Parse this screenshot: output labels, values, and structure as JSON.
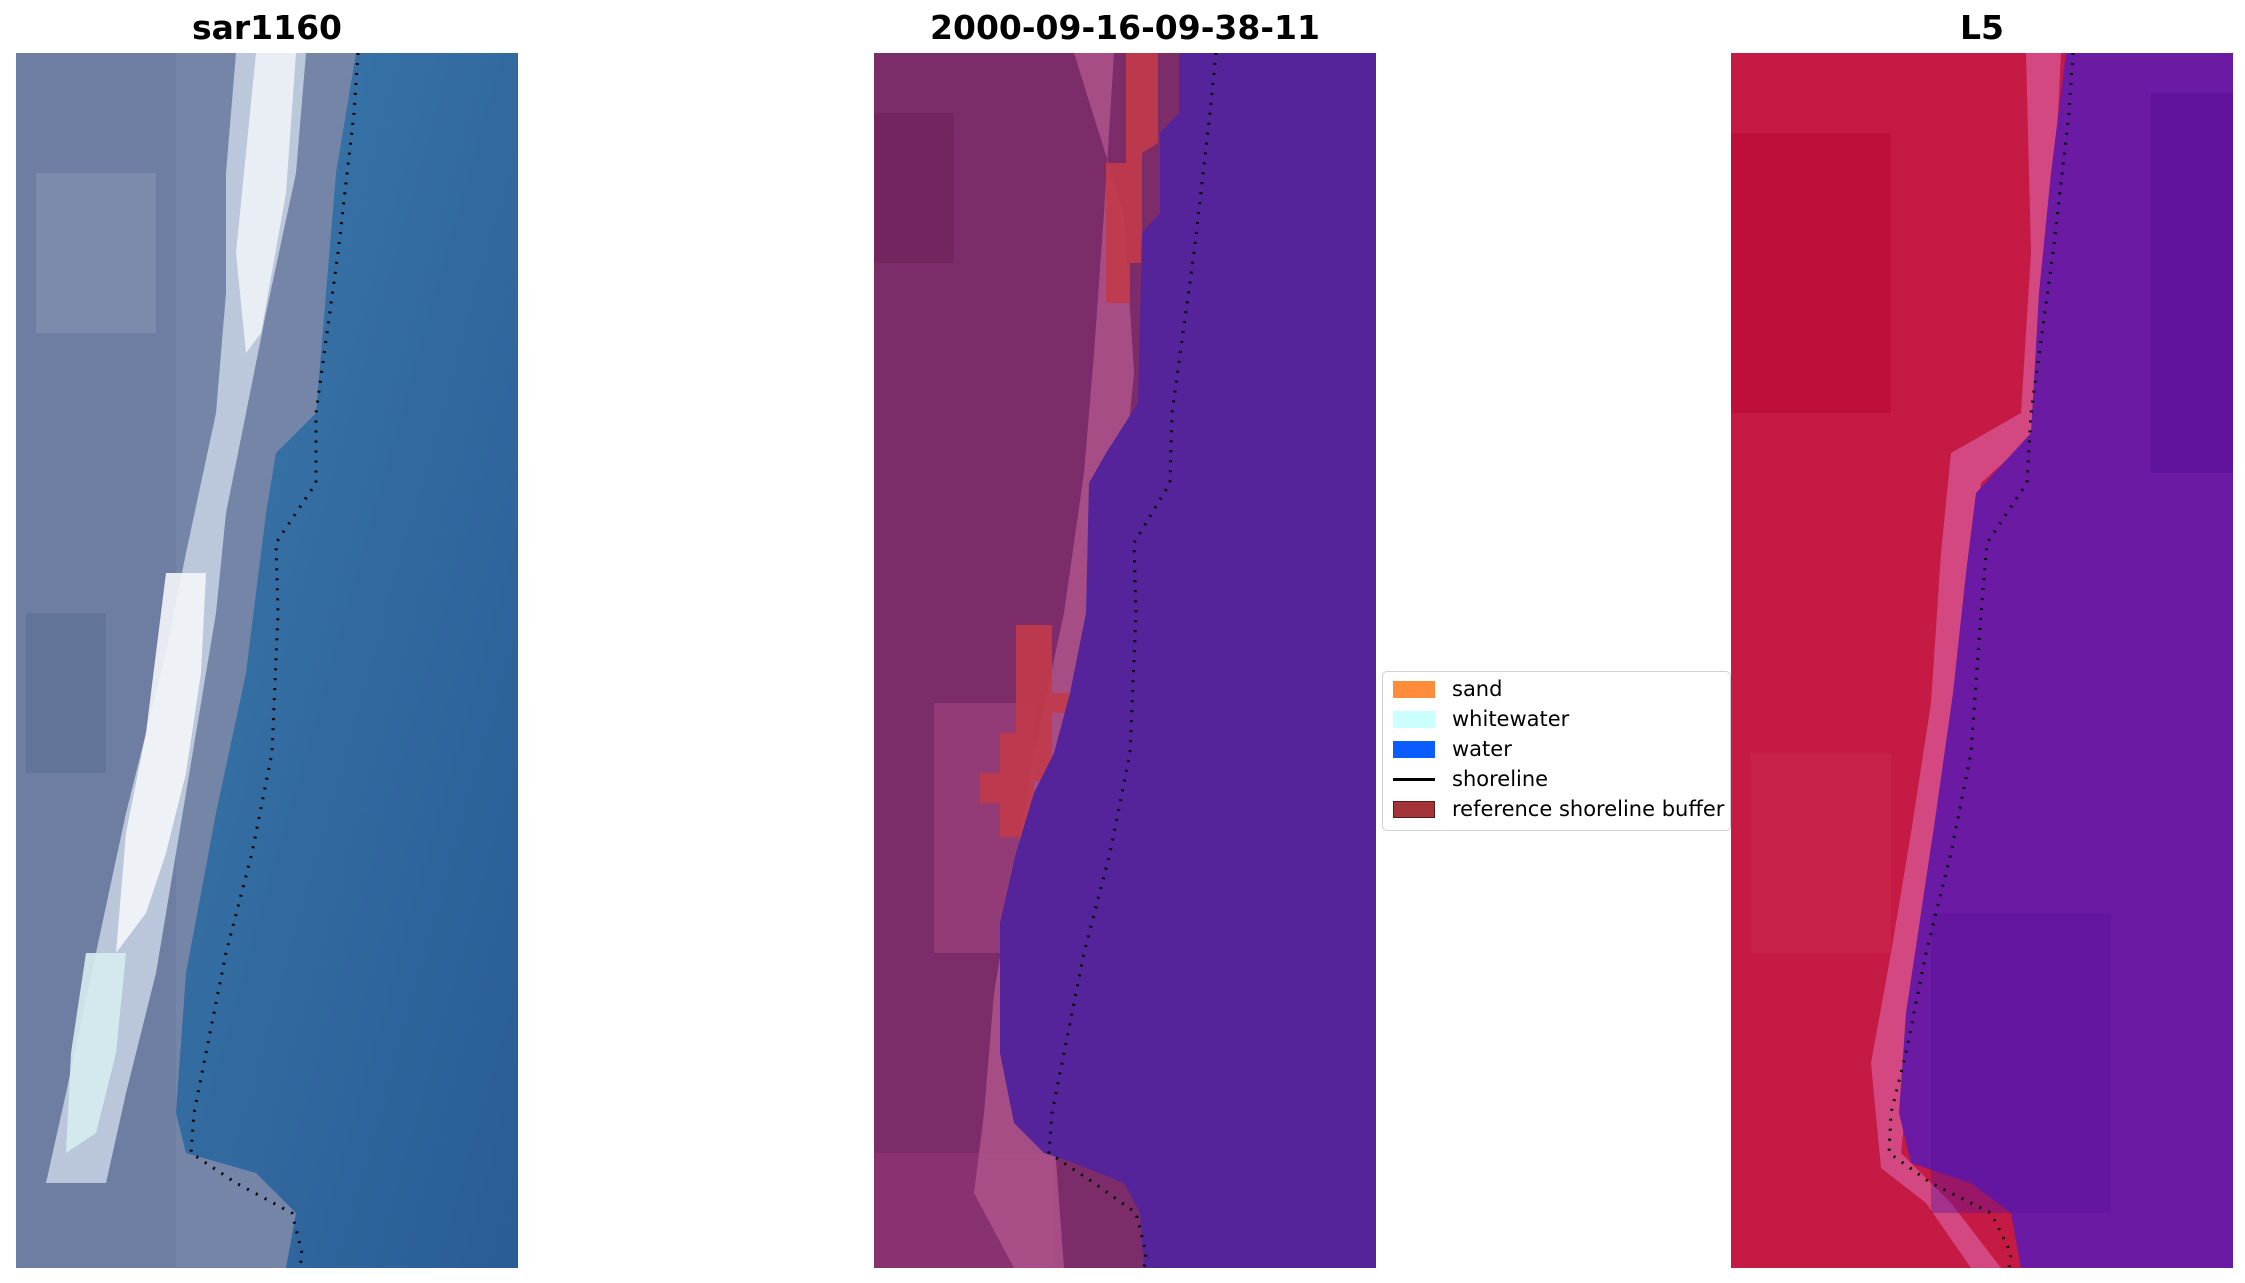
{
  "panels": [
    {
      "title": "sar1160",
      "kind": "rgb"
    },
    {
      "title": "2000-09-16-09-38-11",
      "kind": "classified"
    },
    {
      "title": "L5",
      "kind": "mndwi"
    }
  ],
  "legend": {
    "items": [
      {
        "label": "sand",
        "color": "#ff8c3a",
        "type": "patch"
      },
      {
        "label": "whitewater",
        "color": "#ccffff",
        "type": "patch"
      },
      {
        "label": "water",
        "color": "#0a5cff",
        "type": "patch"
      },
      {
        "label": "shoreline",
        "color": "#000000",
        "type": "line"
      },
      {
        "label": "reference shoreline buffer",
        "color": "#a33538",
        "type": "patch"
      }
    ]
  },
  "colors": {
    "land_rgb": "#6d7fa3",
    "sand_bright": "#e8eef4",
    "sea_rgb": "#2e6aa0",
    "classified_land": "#7d2c6a",
    "classified_water": "#55249a",
    "buffer": "#c23a4a",
    "mndwi_land": "#c0153e",
    "mndwi_water": "#6a1aa3",
    "shoreline": "#000000"
  }
}
